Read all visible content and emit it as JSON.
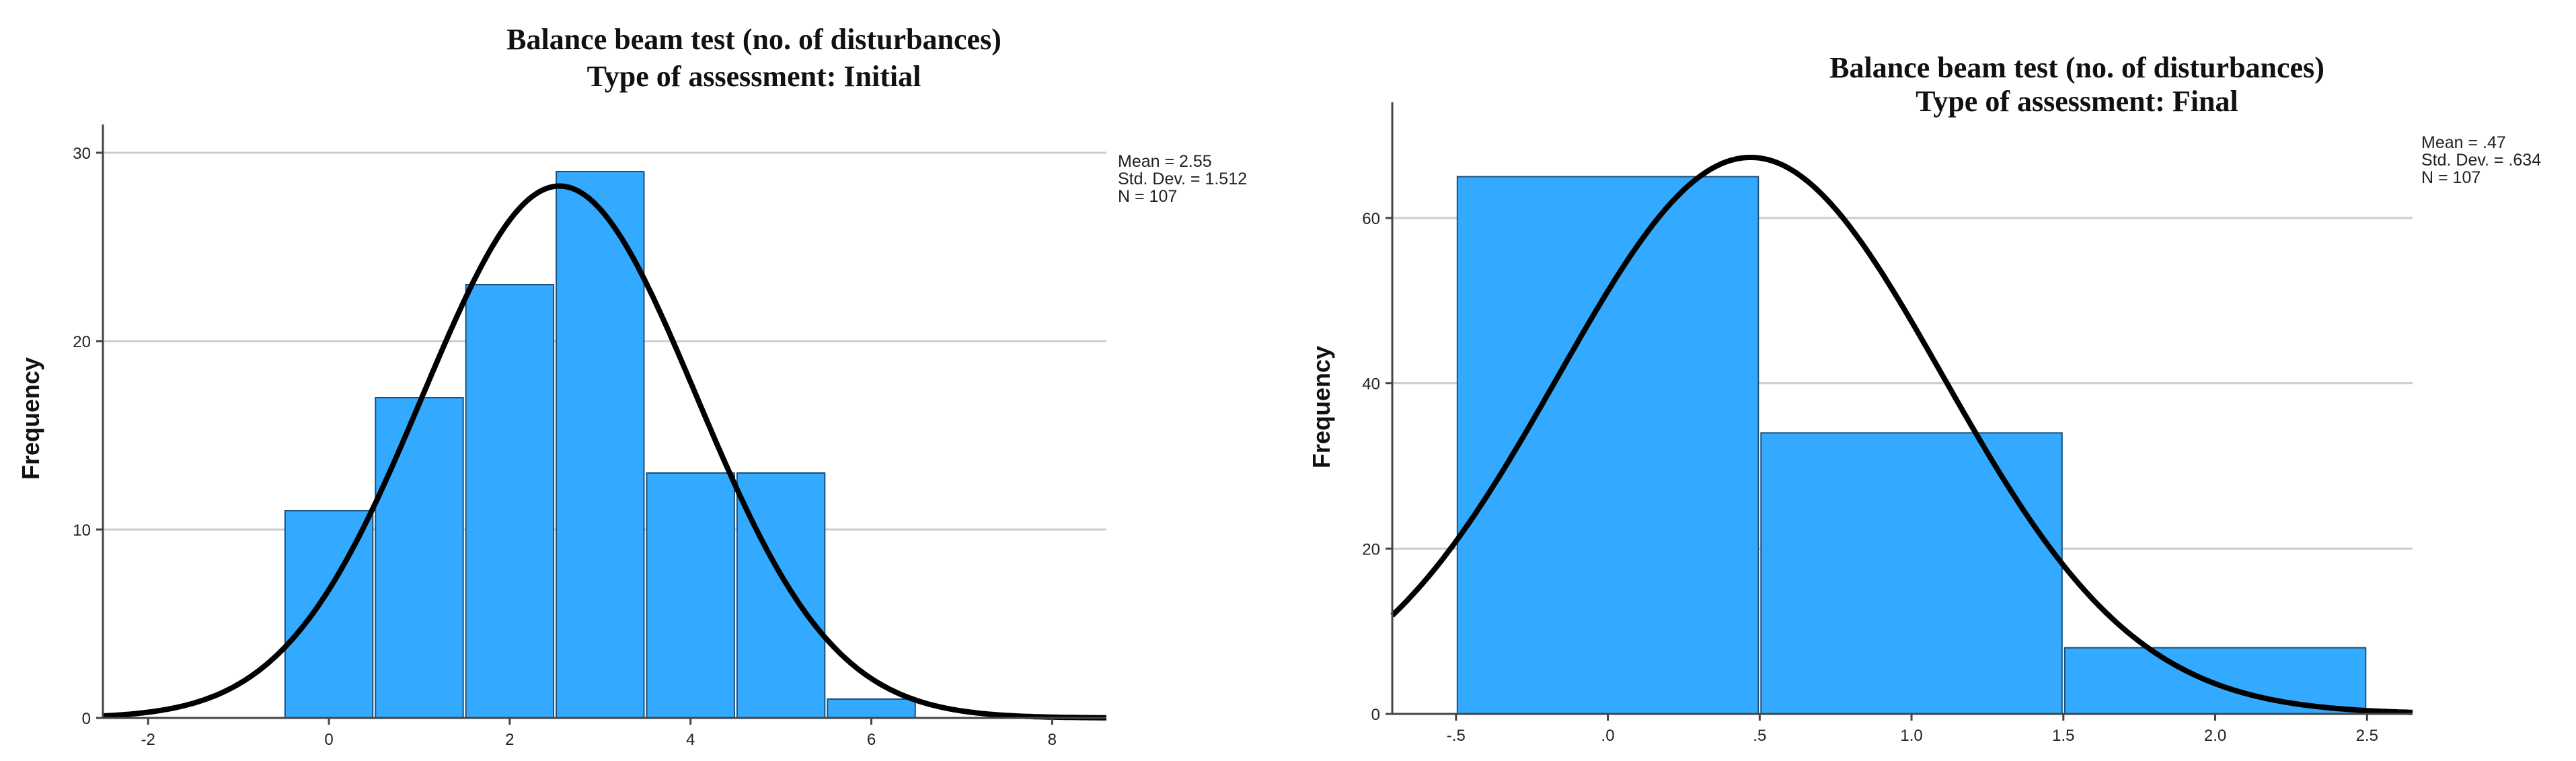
{
  "chart_data": [
    {
      "type": "bar",
      "title": "Balance beam test (no. of disturbances)",
      "subtitle": "Type of assessment: Initial",
      "xlabel": "",
      "ylabel": "Frequency",
      "bins": [
        {
          "x": 0,
          "value": 11
        },
        {
          "x": 1,
          "value": 17
        },
        {
          "x": 2,
          "value": 23
        },
        {
          "x": 3,
          "value": 29
        },
        {
          "x": 4,
          "value": 13
        },
        {
          "x": 5,
          "value": 13
        },
        {
          "x": 6,
          "value": 1
        }
      ],
      "bin_width": 1,
      "xlim": [
        -2.5,
        8.6
      ],
      "ylim": [
        0,
        31.5
      ],
      "xticks": [
        {
          "v": -2,
          "label": "-2"
        },
        {
          "v": 0,
          "label": "0"
        },
        {
          "v": 2,
          "label": "2"
        },
        {
          "v": 4,
          "label": "4"
        },
        {
          "v": 6,
          "label": "6"
        },
        {
          "v": 8,
          "label": "8"
        }
      ],
      "yticks": [
        {
          "v": 0,
          "label": "0"
        },
        {
          "v": 10,
          "label": "10"
        },
        {
          "v": 20,
          "label": "20"
        },
        {
          "v": 30,
          "label": "30"
        }
      ],
      "grid": true,
      "normal_curve": {
        "mean": 2.55,
        "sd": 1.512,
        "n": 107
      },
      "stats_text": [
        "Mean = 2.55",
        "Std. Dev. = 1.512",
        "N = 107"
      ],
      "legend": "none",
      "colors": {
        "bar": "#33aaff",
        "bar_edge": "#1c4f7a",
        "curve": "#000000",
        "grid": "#cccccc",
        "axis": "#444444"
      }
    },
    {
      "type": "bar",
      "title": "Balance beam test (no. of disturbances)",
      "subtitle": "Type of assessment: Final",
      "xlabel": "",
      "ylabel": "Frequency",
      "bins": [
        {
          "x": 0,
          "value": 65
        },
        {
          "x": 1,
          "value": 34
        },
        {
          "x": 2,
          "value": 8
        }
      ],
      "bin_width": 1,
      "xlim": [
        -0.71,
        2.65
      ],
      "ylim": [
        0,
        74
      ],
      "xticks": [
        {
          "v": -0.5,
          "label": "-.5"
        },
        {
          "v": 0,
          "label": ".0"
        },
        {
          "v": 0.5,
          "label": ".5"
        },
        {
          "v": 1,
          "label": "1.0"
        },
        {
          "v": 1.5,
          "label": "1.5"
        },
        {
          "v": 2,
          "label": "2.0"
        },
        {
          "v": 2.5,
          "label": "2.5"
        }
      ],
      "yticks": [
        {
          "v": 0,
          "label": "0"
        },
        {
          "v": 20,
          "label": "20"
        },
        {
          "v": 40,
          "label": "40"
        },
        {
          "v": 60,
          "label": "60"
        }
      ],
      "grid": true,
      "normal_curve": {
        "mean": 0.47,
        "sd": 0.634,
        "n": 107
      },
      "stats_text": [
        "Mean = .47",
        "Std. Dev. = .634",
        "N = 107"
      ],
      "legend": "none",
      "colors": {
        "bar": "#33aaff",
        "bar_edge": "#1c4f7a",
        "curve": "#000000",
        "grid": "#cccccc",
        "axis": "#444444"
      }
    }
  ]
}
